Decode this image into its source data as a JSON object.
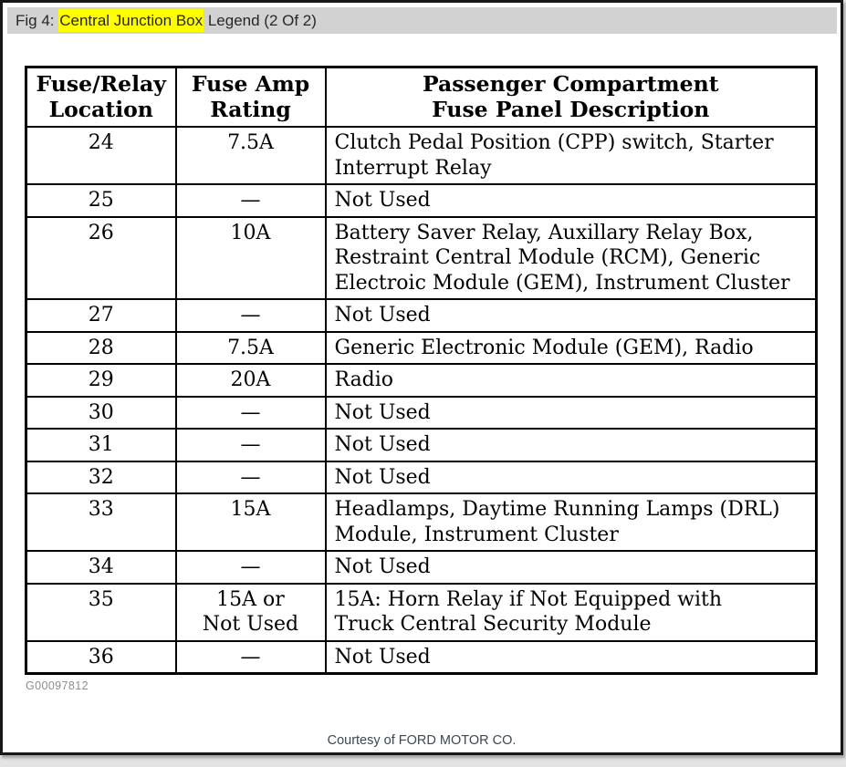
{
  "window": {
    "header_bar_color": "#d2d2d2",
    "highlight_color": "#ffff00",
    "fig_label_prefix": "Fig 4: ",
    "fig_label_highlight": "Central Junction Box",
    "fig_label_suffix": " Legend (2 Of 2)"
  },
  "table": {
    "headers": {
      "location": "Fuse/Relay\nLocation",
      "rating": "Fuse Amp\nRating",
      "description": "Passenger Compartment\nFuse Panel Description"
    },
    "rows": [
      {
        "location": "24",
        "rating": "7.5A",
        "description": "Clutch Pedal Position (CPP) switch, Starter\nInterrupt Relay"
      },
      {
        "location": "25",
        "rating": "—",
        "description": "Not Used"
      },
      {
        "location": "26",
        "rating": "10A",
        "description": "Battery Saver Relay, Auxillary Relay Box,\nRestraint Central Module (RCM), Generic\nElectroic Module (GEM), Instrument Cluster"
      },
      {
        "location": "27",
        "rating": "—",
        "description": "Not Used"
      },
      {
        "location": "28",
        "rating": "7.5A",
        "description": "Generic Electronic Module (GEM), Radio"
      },
      {
        "location": "29",
        "rating": "20A",
        "description": "Radio"
      },
      {
        "location": "30",
        "rating": "—",
        "description": "Not Used"
      },
      {
        "location": "31",
        "rating": "—",
        "description": "Not Used"
      },
      {
        "location": "32",
        "rating": "—",
        "description": "Not Used"
      },
      {
        "location": "33",
        "rating": "15A",
        "description": "Headlamps, Daytime Running Lamps (DRL)\nModule, Instrument Cluster"
      },
      {
        "location": "34",
        "rating": "—",
        "description": "Not Used"
      },
      {
        "location": "35",
        "rating": "15A or\nNot Used",
        "description": "15A: Horn Relay if Not Equipped with\nTruck Central Security Module"
      },
      {
        "location": "36",
        "rating": "—",
        "description": "Not Used"
      }
    ]
  },
  "footer": {
    "figure_code": "G00097812",
    "courtesy": "Courtesy of FORD MOTOR CO."
  }
}
